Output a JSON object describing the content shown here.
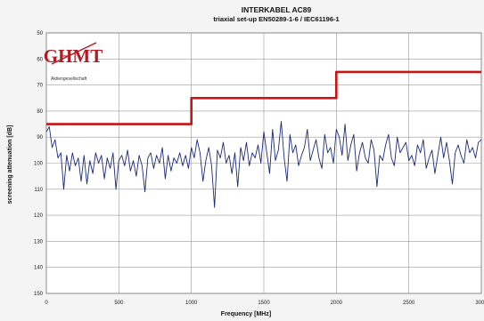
{
  "logo": {
    "text": "Aktiengesellschaft",
    "wordmark": "GHMT",
    "color": "#b01c22"
  },
  "chart_data": {
    "type": "line",
    "title": "INTERKABEL AC89",
    "subtitle": "triaxial set-up EN50289-1-6 / IEC61196-1",
    "xlabel": "Frequency [MHz]",
    "ylabel": "screening attenuation [dB]",
    "xlim": [
      0,
      3000
    ],
    "ylim": [
      50,
      150
    ],
    "y_inverted": true,
    "xticks": [
      0,
      500,
      1000,
      1500,
      2000,
      2500,
      3000
    ],
    "yticks": [
      50,
      60,
      70,
      80,
      90,
      100,
      110,
      120,
      130,
      140,
      150
    ],
    "grid": true,
    "legend": "none",
    "colors": {
      "limit": "#c81414",
      "measured": "#1c2a78",
      "grid": "#9a9a9a"
    },
    "series": [
      {
        "x": [
          0,
          1000,
          1000,
          2000,
          2000,
          3000
        ],
        "y": [
          85,
          85,
          75,
          75,
          65,
          65
        ]
      },
      {
        "x": [
          0,
          20,
          40,
          60,
          80,
          100,
          120,
          140,
          160,
          180,
          200,
          220,
          240,
          260,
          280,
          300,
          320,
          340,
          360,
          380,
          400,
          420,
          440,
          460,
          480,
          500,
          520,
          540,
          560,
          580,
          600,
          620,
          640,
          660,
          680,
          700,
          720,
          740,
          760,
          780,
          800,
          820,
          840,
          860,
          880,
          900,
          920,
          940,
          960,
          980,
          1000,
          1020,
          1040,
          1060,
          1080,
          1100,
          1120,
          1140,
          1160,
          1180,
          1200,
          1220,
          1240,
          1260,
          1280,
          1300,
          1320,
          1340,
          1360,
          1380,
          1400,
          1420,
          1440,
          1460,
          1480,
          1500,
          1520,
          1540,
          1560,
          1580,
          1600,
          1620,
          1640,
          1660,
          1680,
          1700,
          1720,
          1740,
          1760,
          1780,
          1800,
          1820,
          1840,
          1860,
          1880,
          1900,
          1920,
          1940,
          1960,
          1980,
          2000,
          2020,
          2040,
          2060,
          2080,
          2100,
          2120,
          2140,
          2160,
          2180,
          2200,
          2220,
          2240,
          2260,
          2280,
          2300,
          2320,
          2340,
          2360,
          2380,
          2400,
          2420,
          2440,
          2460,
          2480,
          2500,
          2520,
          2540,
          2560,
          2580,
          2600,
          2620,
          2640,
          2660,
          2680,
          2700,
          2720,
          2740,
          2760,
          2780,
          2800,
          2820,
          2840,
          2860,
          2880,
          2900,
          2920,
          2940,
          2960,
          2980,
          3000
        ],
        "y": [
          88,
          86,
          94,
          91,
          98,
          96,
          110,
          97,
          103,
          96,
          101,
          98,
          107,
          97,
          108,
          99,
          104,
          96,
          100,
          97,
          106,
          98,
          102,
          96,
          110,
          99,
          97,
          101,
          95,
          103,
          99,
          105,
          97,
          101,
          111,
          98,
          96,
          102,
          97,
          100,
          94,
          106,
          97,
          103,
          98,
          100,
          96,
          101,
          97,
          102,
          94,
          98,
          91,
          96,
          107,
          99,
          94,
          101,
          117,
          95,
          98,
          92,
          100,
          97,
          104,
          96,
          109,
          94,
          99,
          92,
          101,
          96,
          98,
          93,
          100,
          88,
          96,
          104,
          87,
          99,
          95,
          84,
          98,
          107,
          89,
          96,
          93,
          101,
          97,
          94,
          87,
          99,
          95,
          91,
          98,
          102,
          89,
          96,
          94,
          100,
          87,
          90,
          97,
          85,
          99,
          93,
          89,
          103,
          96,
          92,
          98,
          100,
          91,
          95,
          109,
          97,
          99,
          93,
          89,
          98,
          101,
          90,
          96,
          94,
          92,
          99,
          97,
          101,
          93,
          96,
          91,
          102,
          98,
          95,
          104,
          97,
          90,
          98,
          92,
          99,
          108,
          96,
          93,
          97,
          100,
          91,
          96,
          94,
          98,
          92,
          91
        ]
      }
    ]
  }
}
